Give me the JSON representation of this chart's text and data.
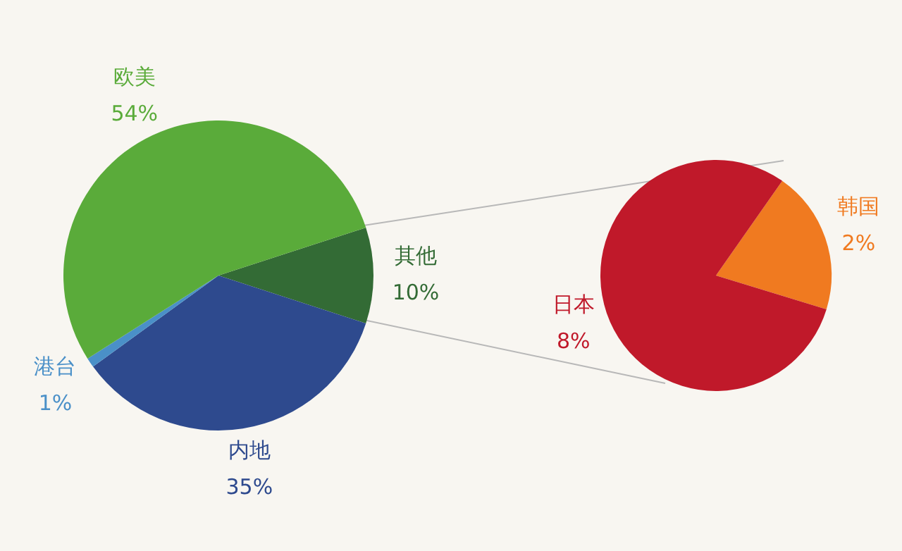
{
  "chart_data": [
    {
      "type": "pie",
      "categories": [
        "其他",
        "内地",
        "港台",
        "欧美"
      ],
      "values": [
        10,
        35,
        1,
        54
      ],
      "colors": [
        "#336b35",
        "#2e4a8e",
        "#4a90c8",
        "#5aab3a"
      ],
      "value_labels": [
        "10%",
        "35%",
        "1%",
        "54%"
      ],
      "legend": false
    },
    {
      "type": "pie",
      "categories": [
        "韩国",
        "日本"
      ],
      "values": [
        2,
        8
      ],
      "colors": [
        "#f07a20",
        "#c0192a"
      ],
      "value_labels": [
        "2%",
        "8%"
      ],
      "legend": false
    }
  ]
}
